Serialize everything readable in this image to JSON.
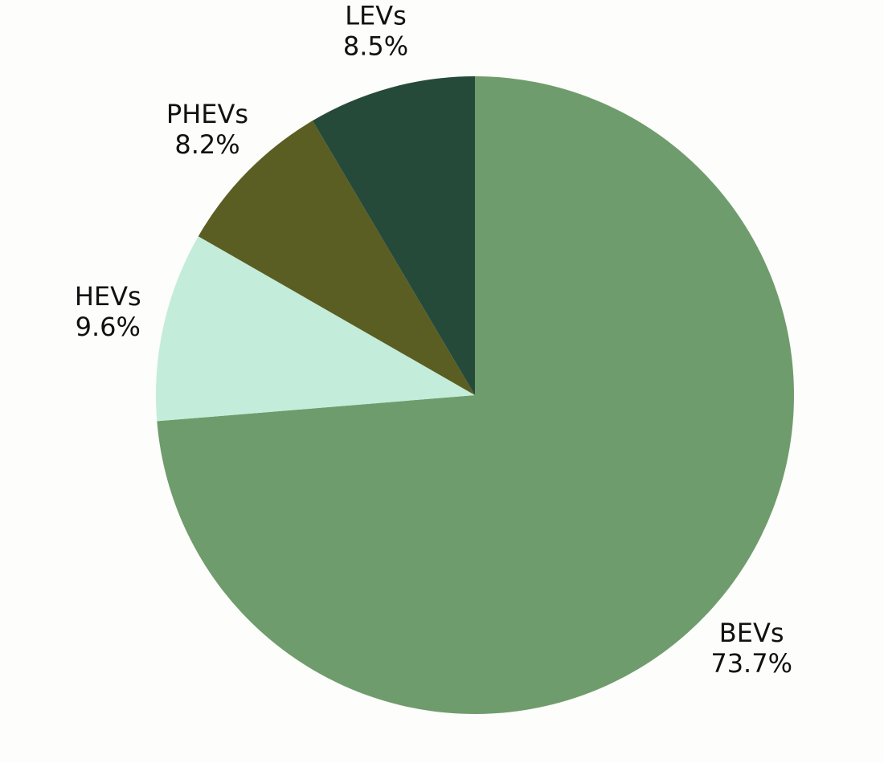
{
  "chart_data": {
    "type": "pie",
    "categories": [
      "BEVs",
      "HEVs",
      "PHEVs",
      "LEVs"
    ],
    "values": [
      73.7,
      9.6,
      8.2,
      8.5
    ],
    "value_labels": [
      "73.7%",
      "9.6%",
      "8.2%",
      "8.5%"
    ],
    "colors": [
      "#6f9c6c",
      "#c4ecda",
      "#5a5e22",
      "#264a3a"
    ]
  }
}
